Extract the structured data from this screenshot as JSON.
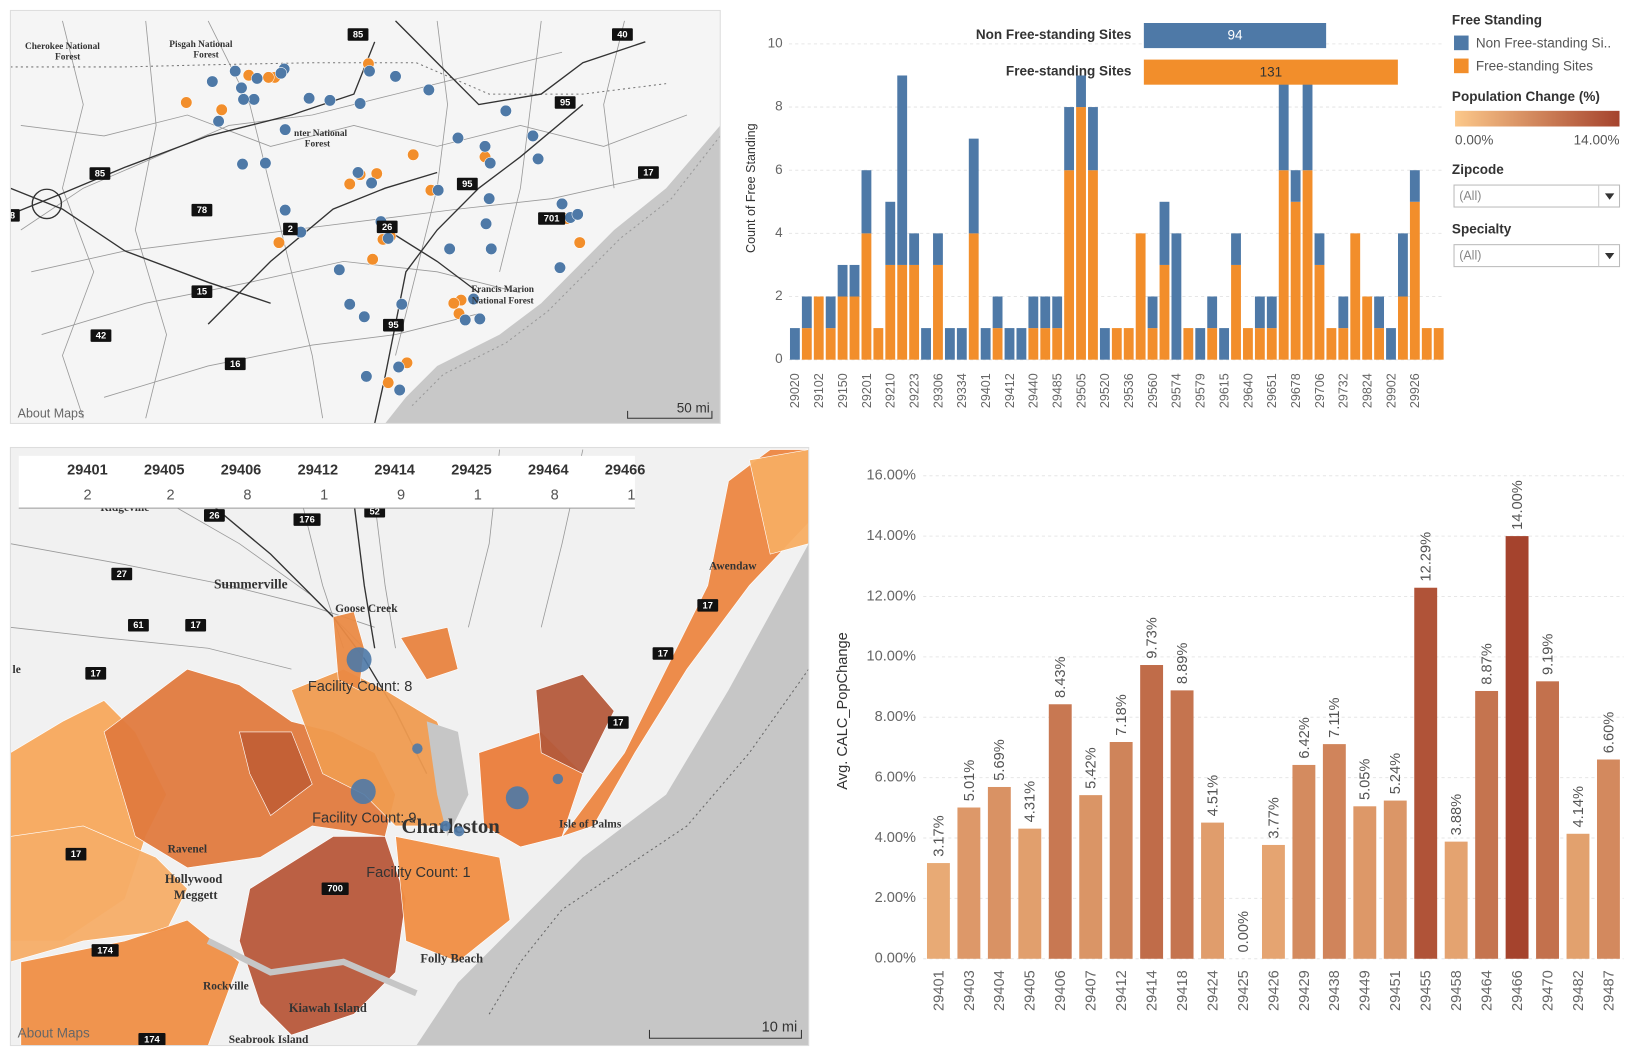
{
  "chart_data": [
    {
      "type": "stacked_bar",
      "y_label": "Count of Free Standing",
      "categories": [
        "29020",
        null,
        "29102",
        null,
        "29150",
        null,
        "29201",
        null,
        "29210",
        null,
        "29223",
        null,
        "29306",
        null,
        "29334",
        null,
        "29401",
        null,
        "29412",
        null,
        "29440",
        null,
        "29485",
        null,
        "29505",
        null,
        "29520",
        null,
        "29536",
        null,
        "29560",
        null,
        "29574",
        null,
        "29579",
        null,
        "29615",
        null,
        "29640",
        null,
        "29651",
        null,
        "29678",
        null,
        "29706",
        null,
        "29732",
        null,
        "29824",
        null,
        "29902",
        null,
        "29926",
        null,
        null
      ],
      "series": [
        {
          "name": "Non Free-standing Si..",
          "color": "#4e79a7",
          "values": [
            1,
            1,
            0,
            1,
            1,
            1,
            2,
            0,
            2,
            6,
            1,
            1,
            1,
            1,
            1,
            3,
            1,
            1,
            1,
            1,
            1,
            1,
            1,
            2,
            1,
            2,
            1,
            0,
            0,
            0,
            1,
            2,
            4,
            0,
            1,
            1,
            1,
            1,
            0,
            1,
            1,
            3,
            1,
            3,
            1,
            0,
            1,
            0,
            0,
            1,
            1,
            2,
            1,
            0,
            0
          ]
        },
        {
          "name": "Free-standing Sites",
          "color": "#f28e2b",
          "values": [
            0,
            1,
            2,
            1,
            2,
            2,
            4,
            1,
            3,
            3,
            3,
            0,
            3,
            0,
            0,
            4,
            0,
            1,
            0,
            0,
            1,
            1,
            1,
            6,
            8,
            6,
            0,
            1,
            1,
            4,
            1,
            3,
            0,
            1,
            0,
            1,
            0,
            3,
            1,
            1,
            1,
            6,
            5,
            6,
            3,
            1,
            1,
            4,
            2,
            1,
            0,
            2,
            5,
            1,
            1
          ]
        }
      ],
      "ylim": [
        0,
        10
      ],
      "yticks": [
        0,
        2,
        4,
        6,
        8,
        10
      ],
      "grid": true
    },
    {
      "type": "hbar",
      "categories": [
        "Non Free-standing Sites",
        "Free-standing Sites"
      ],
      "values": [
        94,
        131
      ],
      "colors": [
        "#4e79a7",
        "#f28e2b"
      ]
    },
    {
      "type": "bar",
      "y_label": "Avg. CALC_PopChange",
      "categories": [
        "29401",
        "29403",
        "29404",
        "29405",
        "29406",
        "29407",
        "29412",
        "29414",
        "29418",
        "29424",
        "29425",
        "29426",
        "29429",
        "29438",
        "29449",
        "29451",
        "29455",
        "29458",
        "29464",
        "29466",
        "29470",
        "29482",
        "29487"
      ],
      "values": [
        3.17,
        5.01,
        5.69,
        4.31,
        8.43,
        5.42,
        7.18,
        9.73,
        8.89,
        4.51,
        0,
        3.77,
        6.42,
        7.11,
        5.05,
        5.24,
        12.29,
        3.88,
        8.87,
        14.0,
        9.19,
        4.14,
        6.6
      ],
      "value_labels": [
        "3.17%",
        "5.01%",
        "5.69%",
        "4.31%",
        "8.43%",
        "5.42%",
        "7.18%",
        "9.73%",
        "8.89%",
        "4.51%",
        "0.00%",
        "3.77%",
        "6.42%",
        "7.11%",
        "5.05%",
        "5.24%",
        "12.29%",
        "3.88%",
        "8.87%",
        "14.00%",
        "9.19%",
        "4.14%",
        "6.60%"
      ],
      "ylim": [
        0,
        16
      ],
      "yticks": [
        {
          "value": 0,
          "label": "0.00%"
        },
        {
          "value": 2,
          "label": "2.00%"
        },
        {
          "value": 4,
          "label": "4.00%"
        },
        {
          "value": 6,
          "label": "6.00%"
        },
        {
          "value": 8,
          "label": "8.00%"
        },
        {
          "value": 10,
          "label": "10.00%"
        },
        {
          "value": 12,
          "label": "12.00%"
        },
        {
          "value": 14,
          "label": "14.00%"
        },
        {
          "value": 16,
          "label": "16.00%"
        }
      ],
      "grid": true
    }
  ],
  "legend": {
    "title": "Free Standing",
    "color_title": "Population Change (%)",
    "color_range": [
      {
        "value": 0,
        "label": "0.00%"
      },
      {
        "value": 14,
        "label": "14.00%"
      }
    ],
    "color_stops": [
      "#fcc88a",
      "#a5432d"
    ]
  },
  "filters": [
    {
      "label": "Zipcode",
      "value": "(All)"
    },
    {
      "label": "Specialty",
      "value": "(All)"
    }
  ],
  "table": {
    "headers": [
      "29401",
      "29405",
      "29406",
      "29412",
      "29414",
      "29425",
      "29464",
      "29466"
    ],
    "values": [
      2,
      2,
      8,
      1,
      9,
      1,
      8,
      1
    ]
  },
  "maps": [
    {
      "places": [
        "Cherokee National",
        "Forest",
        "Pisgah National",
        "Forest",
        "nter National",
        "Forest",
        "Francis Marion",
        "National Forest"
      ],
      "shields": [
        "85",
        "40",
        "95",
        "85",
        "17",
        "78",
        "95",
        "26",
        "2",
        "701",
        "15",
        "42",
        "95",
        "16",
        "8"
      ],
      "attribution": "About Maps",
      "scale": "50 mi"
    },
    {
      "places": [
        "Ridgeville",
        "Summerville",
        "Goose Creek",
        "le",
        "Awendaw",
        "Ravenel",
        "Hollywood",
        "Meggett",
        "Charleston",
        "Isle of Palms",
        "Folly Beach",
        "Rockville",
        "Kiawah Island",
        "Seabrook Island"
      ],
      "shields": [
        "26",
        "176",
        "52",
        "27",
        "61",
        "17",
        "17",
        "17",
        "17",
        "17",
        "17",
        "700",
        "174",
        "174"
      ],
      "facility_labels": [
        "Facility Count: 8",
        "Facility Count: 9",
        "Facility Count: 1"
      ],
      "attribution": "About Maps",
      "scale": "10 mi"
    }
  ]
}
